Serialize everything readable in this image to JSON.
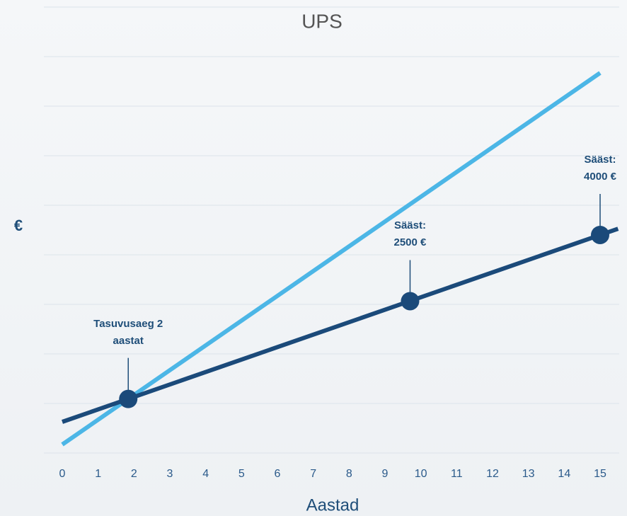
{
  "chart_data": {
    "type": "line",
    "title": "UPS",
    "xlabel": "Aastad",
    "ylabel": "€",
    "xlim": [
      0,
      15
    ],
    "xticks": [
      0,
      1,
      2,
      3,
      4,
      5,
      6,
      7,
      8,
      9,
      10,
      11,
      12,
      13,
      14,
      15
    ],
    "ylim": [
      0,
      11000
    ],
    "grid": true,
    "series": [
      {
        "color": "#4cb6e6",
        "x": [
          0,
          15
        ],
        "values": [
          210,
          9376
        ]
      },
      {
        "color": "#1b4a7a",
        "x": [
          0,
          15.5
        ],
        "values": [
          768,
          5532
        ]
      }
    ],
    "points": [
      {
        "x": 1.84,
        "y": 1333,
        "color": "#1b4a7a"
      },
      {
        "x": 9.7,
        "y": 3746,
        "color": "#1b4a7a"
      },
      {
        "x": 15,
        "y": 5378,
        "color": "#1b4a7a"
      }
    ],
    "annotations": [
      {
        "text": "Tasuvusaeg 2 aastat",
        "x": 1.84,
        "y": 1333
      },
      {
        "text": "Sääst: 2500 €",
        "x": 9.7,
        "y": 3746
      },
      {
        "text": "Sääst: 4000 €",
        "x": 15,
        "y": 5378
      }
    ]
  }
}
